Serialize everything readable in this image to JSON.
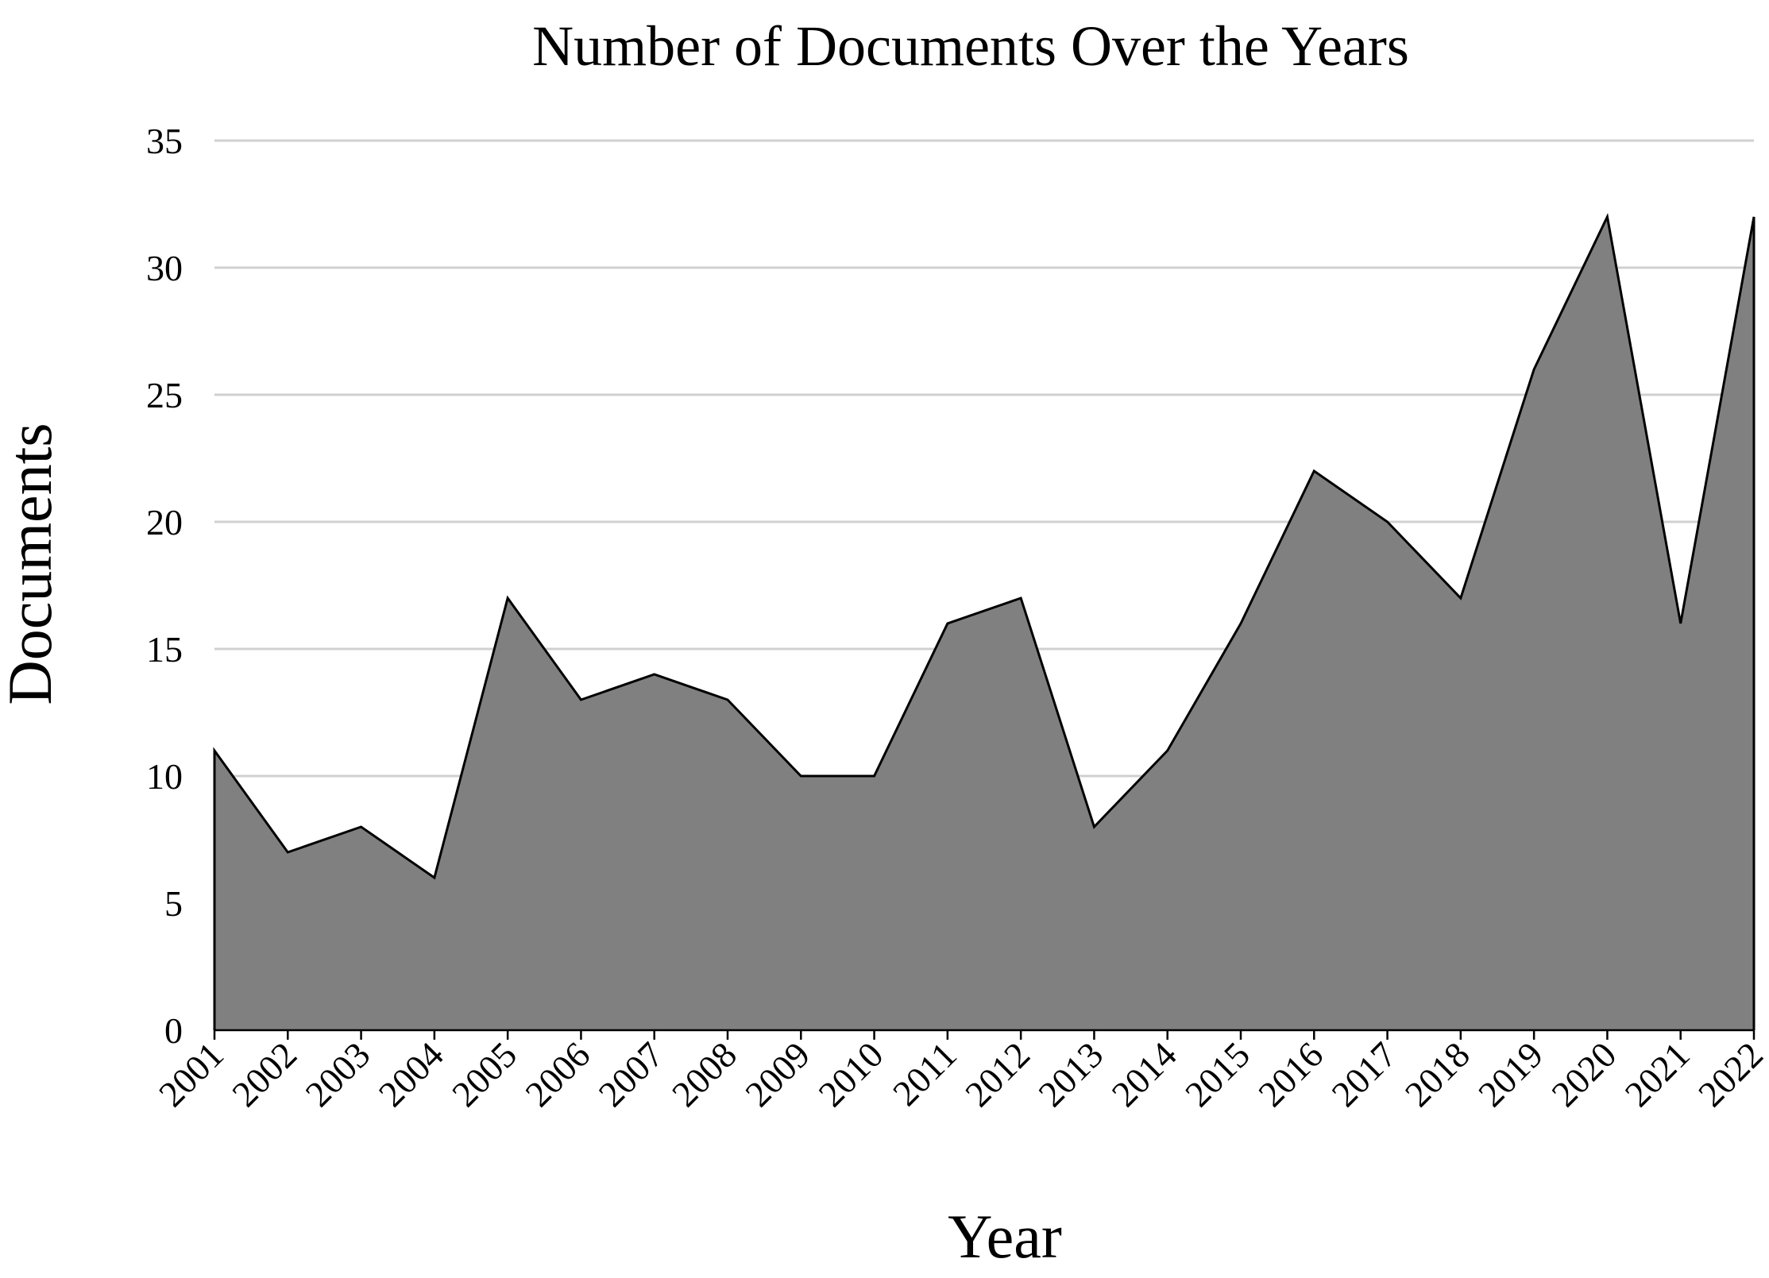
{
  "chart_data": {
    "type": "area",
    "title": "Number of Documents Over the Years",
    "xlabel": "Year",
    "ylabel": "Documents",
    "categories": [
      "2001",
      "2002",
      "2003",
      "2004",
      "2005",
      "2006",
      "2007",
      "2008",
      "2009",
      "2010",
      "2011",
      "2012",
      "2013",
      "2014",
      "2015",
      "2016",
      "2017",
      "2018",
      "2019",
      "2020",
      "2021",
      "2022"
    ],
    "values": [
      11,
      7,
      8,
      6,
      17,
      13,
      14,
      13,
      10,
      10,
      16,
      17,
      8,
      11,
      16,
      22,
      20,
      17,
      26,
      32,
      16,
      32
    ],
    "ylim": [
      0,
      35
    ],
    "yticks": [
      0,
      5,
      10,
      15,
      20,
      25,
      30,
      35
    ],
    "grid": true,
    "legend": "none",
    "colors": {
      "fill": "#808080",
      "line": "#000000",
      "grid": "#d0d0d0"
    }
  }
}
